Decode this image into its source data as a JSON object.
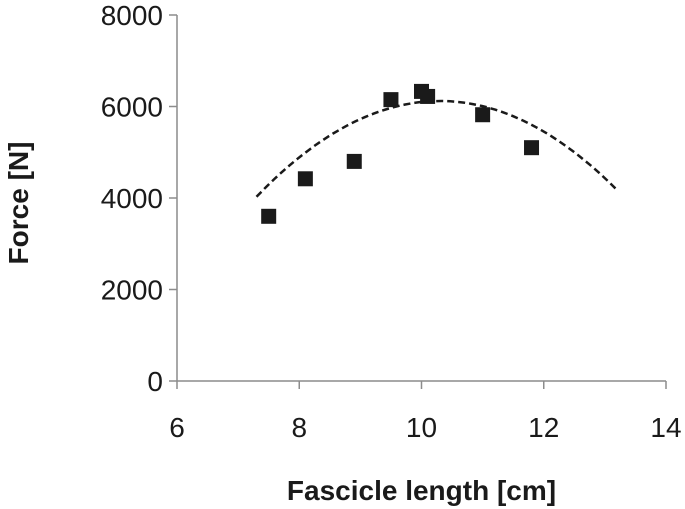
{
  "chart_data": {
    "type": "scatter",
    "title": "",
    "xlabel": "Fascicle length [cm]",
    "ylabel": "Force [N]",
    "xlim": [
      6,
      14
    ],
    "ylim": [
      0,
      8000
    ],
    "x_ticks": [
      6,
      8,
      10,
      12,
      14
    ],
    "y_ticks": [
      0,
      2000,
      4000,
      6000,
      8000
    ],
    "grid": false,
    "legend": "none",
    "series": [
      {
        "marker": "square",
        "color": "#1a1a1a",
        "points": [
          {
            "x": 7.5,
            "y": 3600
          },
          {
            "x": 8.1,
            "y": 4420
          },
          {
            "x": 8.9,
            "y": 4800
          },
          {
            "x": 9.5,
            "y": 6150
          },
          {
            "x": 10.0,
            "y": 6330
          },
          {
            "x": 10.1,
            "y": 6220
          },
          {
            "x": 11.0,
            "y": 5820
          },
          {
            "x": 11.8,
            "y": 5100
          }
        ]
      }
    ],
    "trendline": {
      "style": "dashed",
      "color": "#1a1a1a",
      "fit": "quadratic",
      "x_range": [
        7.3,
        13.2
      ],
      "coefficients": {
        "a": -232,
        "b": 4781,
        "c": -18512
      }
    }
  }
}
